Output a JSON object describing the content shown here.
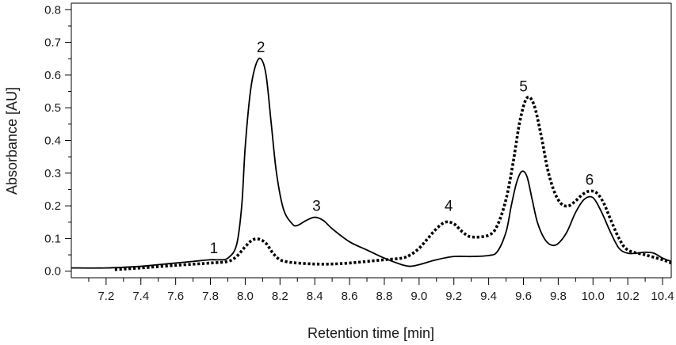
{
  "chart_data": {
    "type": "line",
    "title": "",
    "xlabel": "Retention time [min]",
    "ylabel": "Absorbance [AU]",
    "xlim": [
      7.0,
      10.45
    ],
    "ylim": [
      -0.02,
      0.82
    ],
    "x_ticks": [
      "7.2",
      "7.4",
      "7.6",
      "7.8",
      "8.0",
      "8.2",
      "8.4",
      "8.6",
      "8.8",
      "9.0",
      "9.2",
      "9.4",
      "9.6",
      "9.8",
      "10.0",
      "10.2",
      "10.4"
    ],
    "y_ticks": [
      "0.0",
      "0.1",
      "0.2",
      "0.3",
      "0.4",
      "0.5",
      "0.6",
      "0.7",
      "0.8"
    ],
    "grid": false,
    "legend": "none",
    "series": [
      {
        "style": "solid",
        "color": "#000000",
        "x": [
          7.0,
          7.2,
          7.4,
          7.5,
          7.6,
          7.7,
          7.8,
          7.85,
          7.9,
          7.95,
          7.98,
          8.0,
          8.03,
          8.06,
          8.09,
          8.12,
          8.15,
          8.18,
          8.22,
          8.27,
          8.3,
          8.35,
          8.4,
          8.45,
          8.5,
          8.6,
          8.7,
          8.8,
          8.9,
          8.95,
          9.0,
          9.1,
          9.2,
          9.3,
          9.4,
          9.45,
          9.5,
          9.53,
          9.56,
          9.59,
          9.62,
          9.65,
          9.68,
          9.72,
          9.76,
          9.8,
          9.85,
          9.9,
          9.95,
          10.0,
          10.05,
          10.1,
          10.15,
          10.2,
          10.25,
          10.3,
          10.35,
          10.4,
          10.45
        ],
        "y": [
          0.01,
          0.01,
          0.015,
          0.02,
          0.025,
          0.03,
          0.035,
          0.035,
          0.04,
          0.08,
          0.2,
          0.38,
          0.55,
          0.63,
          0.65,
          0.6,
          0.45,
          0.3,
          0.19,
          0.145,
          0.14,
          0.155,
          0.165,
          0.155,
          0.13,
          0.09,
          0.065,
          0.04,
          0.02,
          0.015,
          0.02,
          0.035,
          0.045,
          0.045,
          0.048,
          0.06,
          0.12,
          0.2,
          0.27,
          0.305,
          0.29,
          0.22,
          0.15,
          0.1,
          0.08,
          0.085,
          0.12,
          0.18,
          0.22,
          0.225,
          0.18,
          0.12,
          0.07,
          0.055,
          0.055,
          0.058,
          0.055,
          0.04,
          0.03
        ]
      },
      {
        "style": "dotted",
        "color": "#000000",
        "x": [
          7.25,
          7.4,
          7.6,
          7.8,
          7.9,
          7.95,
          8.0,
          8.04,
          8.08,
          8.12,
          8.16,
          8.2,
          8.25,
          8.3,
          8.4,
          8.5,
          8.6,
          8.7,
          8.8,
          8.9,
          8.95,
          9.0,
          9.05,
          9.1,
          9.15,
          9.2,
          9.25,
          9.3,
          9.4,
          9.45,
          9.5,
          9.54,
          9.58,
          9.62,
          9.66,
          9.7,
          9.74,
          9.78,
          9.82,
          9.86,
          9.9,
          9.94,
          9.98,
          10.02,
          10.06,
          10.1,
          10.15,
          10.2,
          10.3,
          10.4,
          10.45
        ],
        "y": [
          0.005,
          0.01,
          0.018,
          0.025,
          0.03,
          0.045,
          0.075,
          0.095,
          0.098,
          0.085,
          0.055,
          0.035,
          0.028,
          0.025,
          0.022,
          0.022,
          0.025,
          0.03,
          0.035,
          0.04,
          0.05,
          0.07,
          0.1,
          0.13,
          0.15,
          0.145,
          0.12,
          0.105,
          0.11,
          0.14,
          0.22,
          0.33,
          0.46,
          0.53,
          0.51,
          0.42,
          0.31,
          0.24,
          0.205,
          0.2,
          0.215,
          0.235,
          0.245,
          0.24,
          0.21,
          0.16,
          0.1,
          0.065,
          0.05,
          0.035,
          0.025
        ]
      }
    ],
    "annotations": [
      {
        "text": "1",
        "x": 7.82,
        "y": 0.055
      },
      {
        "text": "2",
        "x": 8.09,
        "y": 0.67
      },
      {
        "text": "3",
        "x": 8.41,
        "y": 0.185
      },
      {
        "text": "4",
        "x": 9.17,
        "y": 0.185
      },
      {
        "text": "5",
        "x": 9.6,
        "y": 0.55
      },
      {
        "text": "6",
        "x": 9.98,
        "y": 0.265
      }
    ]
  }
}
